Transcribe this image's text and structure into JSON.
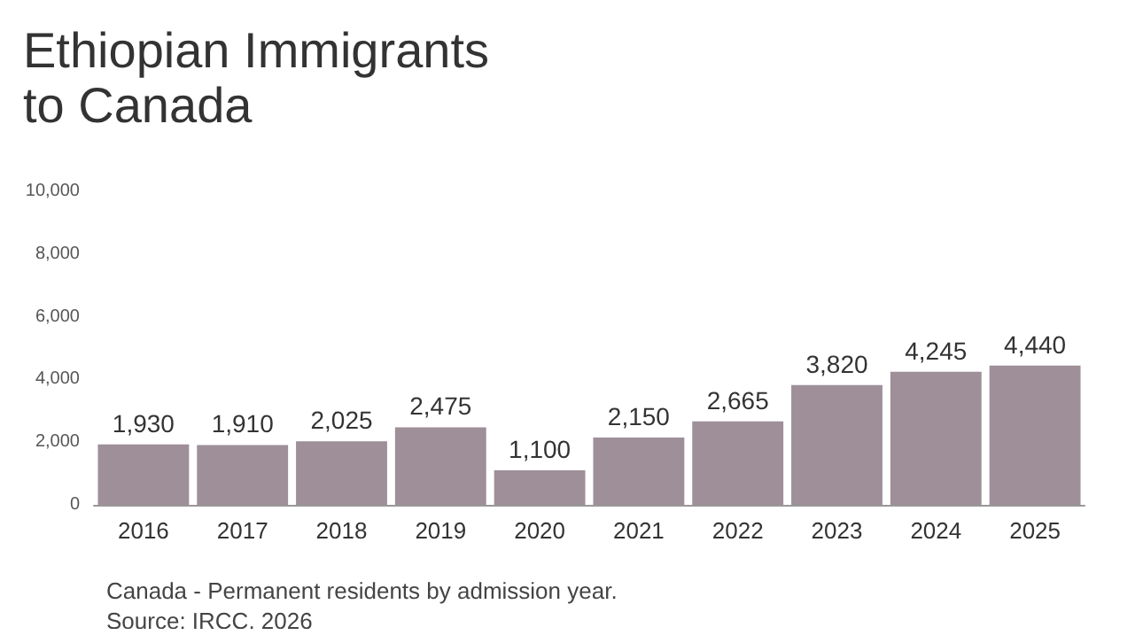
{
  "chart_data": {
    "type": "bar",
    "title": "Ethiopian Immigrants to Canada",
    "categories": [
      "2016",
      "2017",
      "2018",
      "2019",
      "2020",
      "2021",
      "2022",
      "2023",
      "2024",
      "2025"
    ],
    "values": [
      1930,
      1910,
      2025,
      2475,
      1100,
      2150,
      2665,
      3820,
      4245,
      4440
    ],
    "value_labels": [
      "1,930",
      "1,910",
      "2,025",
      "2,475",
      "1,100",
      "2,150",
      "2,665",
      "3,820",
      "4,245",
      "4,440"
    ],
    "color": "#9e8f99",
    "ylim": [
      0,
      10000
    ],
    "yticks": [
      0,
      {
        "value": 2000,
        "label": "2,000"
      },
      {
        "value": 4000,
        "label": "4,000"
      },
      {
        "value": 6000,
        "label": "6,000"
      },
      {
        "value": 8000,
        "label": "8,000"
      },
      {
        "value": 10000,
        "label": "10,000"
      }
    ],
    "annotations": [
      "Canada - Permanent residents by admission year.",
      "Source: IRCC. 2026"
    ]
  }
}
